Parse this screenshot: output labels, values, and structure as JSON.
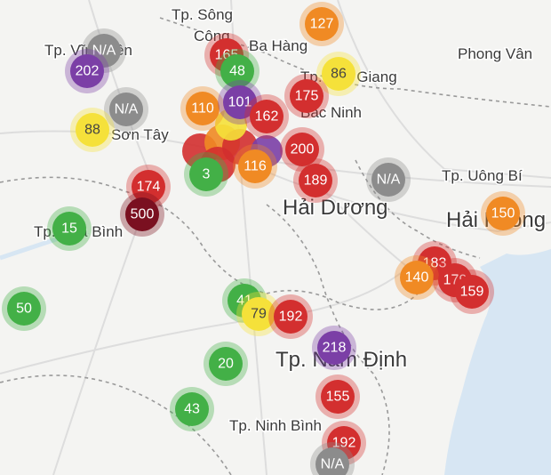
{
  "places": [
    {
      "label": "Tp. Sông"
    },
    {
      "label": "Công"
    },
    {
      "label": "Ba Hàng"
    },
    {
      "label": "Tp. Vĩnh Yên"
    },
    {
      "label": "Tp. Bắc Giang"
    },
    {
      "label": "Phong Vân"
    },
    {
      "label": "Bắc Ninh"
    },
    {
      "label": "Sơn Tây"
    },
    {
      "label": "Tp. Uông Bí"
    },
    {
      "label": "Hải Dương"
    },
    {
      "label": "Hải Phòng"
    },
    {
      "label": "Tp. Hòa Bình"
    },
    {
      "label": "Tp. Nam Định"
    },
    {
      "label": "Tp. Ninh Bình"
    }
  ],
  "markers": [
    {
      "label": "127",
      "color": "#f08a24"
    },
    {
      "label": "N/A",
      "color": "#8c8c8c"
    },
    {
      "label": "202",
      "color": "#7b3fa6"
    },
    {
      "label": "165",
      "color": "#d32f2f"
    },
    {
      "label": "48",
      "color": "#43b047"
    },
    {
      "label": "86",
      "color": "#f5e13a"
    },
    {
      "label": "175",
      "color": "#d32f2f"
    },
    {
      "label": "N/A",
      "color": "#8c8c8c"
    },
    {
      "label": "88",
      "color": "#f5e13a"
    },
    {
      "label": "110",
      "color": "#f08a24"
    },
    {
      "label": "101",
      "color": "#7b3fa6"
    },
    {
      "label": "162",
      "color": "#d32f2f"
    },
    {
      "label": "200",
      "color": "#d32f2f"
    },
    {
      "label": "116",
      "color": "#f08a24"
    },
    {
      "label": "3",
      "color": "#43b047"
    },
    {
      "label": "189",
      "color": "#d32f2f"
    },
    {
      "label": "N/A",
      "color": "#8c8c8c"
    },
    {
      "label": "174",
      "color": "#d32f2f"
    },
    {
      "label": "500",
      "color": "#7a1020"
    },
    {
      "label": "15",
      "color": "#43b047"
    },
    {
      "label": "150",
      "color": "#f08a24"
    },
    {
      "label": "183",
      "color": "#d32f2f"
    },
    {
      "label": "140",
      "color": "#f08a24"
    },
    {
      "label": "179",
      "color": "#d32f2f"
    },
    {
      "label": "159",
      "color": "#d32f2f"
    },
    {
      "label": "50",
      "color": "#43b047"
    },
    {
      "label": "41",
      "color": "#43b047"
    },
    {
      "label": "79",
      "color": "#f5e13a"
    },
    {
      "label": "192",
      "color": "#d32f2f"
    },
    {
      "label": "218",
      "color": "#7b3fa6"
    },
    {
      "label": "20",
      "color": "#43b047"
    },
    {
      "label": "155",
      "color": "#d32f2f"
    },
    {
      "label": "43",
      "color": "#43b047"
    },
    {
      "label": "192",
      "color": "#d32f2f"
    },
    {
      "label": "N/A",
      "color": "#8c8c8c"
    }
  ]
}
